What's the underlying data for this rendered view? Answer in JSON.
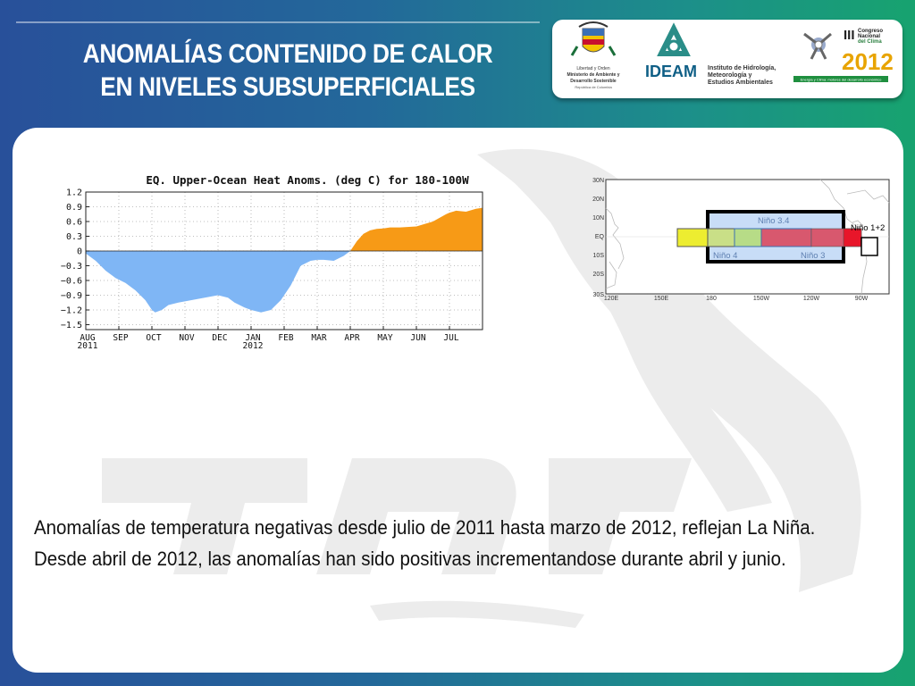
{
  "slide": {
    "title_line1": "ANOMALÍAS CONTENIDO DE CALOR",
    "title_line2": "EN NIVELES SUBSUPERFICIALES",
    "caption": "Anomalías de temperatura negativas desde julio de 2011 hasta marzo de 2012, reflejan La Niña. Desde abril de 2012, las anomalías han sido positivas incrementandose durante abril y junio."
  },
  "logos": {
    "ministry": [
      "Libertad y Orden",
      "Ministerio de Ambiente y",
      "Desarrollo Sostenible",
      "República de Colombia"
    ],
    "ideam_name": "IDEAM",
    "ideam_text": [
      "Instituto de Hidrología,",
      "Meteorología y",
      "Estudios Ambientales"
    ],
    "congreso_roman": "III",
    "congreso_text": [
      "Congreso",
      "Nacional",
      "del Clima"
    ],
    "congreso_year": "2012",
    "congreso_tagline": "Energía y Clima: motores del desarrollo económico"
  },
  "colors": {
    "negative": "#7fb6f5",
    "positive": "#f79a16"
  },
  "chart_data": {
    "type": "area",
    "title": "EQ. Upper-Ocean Heat Anoms. (deg C) for 180-100W",
    "ylim": [
      -1.6,
      1.2
    ],
    "yticks": [
      1.2,
      0.9,
      0.6,
      0.3,
      0,
      -0.3,
      -0.6,
      -0.9,
      -1.2,
      -1.5
    ],
    "ytick_labels": [
      "1.2",
      "0.9",
      "0.6",
      "0.3",
      "0",
      "−0.3",
      "−0.6",
      "−0.9",
      "−1.2",
      "−1.5"
    ],
    "xlim": [
      0,
      12
    ],
    "month_labels": [
      "AUG",
      "SEP",
      "OCT",
      "NOV",
      "DEC",
      "JAN",
      "FEB",
      "MAR",
      "APR",
      "MAY",
      "JUN",
      "JUL"
    ],
    "year_labels": [
      {
        "month": "AUG",
        "year": "2011"
      },
      {
        "month": "JAN",
        "year": "2012"
      }
    ],
    "grid": true,
    "series": {
      "x": [
        0,
        0.3,
        0.6,
        0.9,
        1.2,
        1.5,
        1.8,
        2.0,
        2.1,
        2.3,
        2.5,
        2.8,
        3.2,
        3.6,
        4.0,
        4.3,
        4.5,
        4.8,
        5.0,
        5.3,
        5.6,
        5.9,
        6.2,
        6.5,
        6.8,
        7.0,
        7.2,
        7.5,
        7.8,
        8.0,
        8.2,
        8.4,
        8.6,
        8.8,
        9.0,
        9.2,
        9.5,
        10.0,
        10.5,
        10.9,
        11.0,
        11.2,
        11.5,
        11.8,
        12.0
      ],
      "y": [
        -0.05,
        -0.2,
        -0.4,
        -0.55,
        -0.65,
        -0.8,
        -1.0,
        -1.2,
        -1.25,
        -1.2,
        -1.1,
        -1.05,
        -1.0,
        -0.95,
        -0.9,
        -0.95,
        -1.05,
        -1.15,
        -1.2,
        -1.25,
        -1.2,
        -1.0,
        -0.7,
        -0.3,
        -0.2,
        -0.18,
        -0.18,
        -0.2,
        -0.1,
        0.0,
        0.2,
        0.35,
        0.42,
        0.45,
        0.46,
        0.48,
        0.48,
        0.5,
        0.6,
        0.75,
        0.78,
        0.82,
        0.8,
        0.86,
        0.88
      ]
    }
  },
  "map_data": {
    "lat_labels": [
      "30N",
      "20N",
      "10N",
      "EQ",
      "10S",
      "20S",
      "30S"
    ],
    "lon_labels": [
      "120E",
      "150E",
      "180",
      "150W",
      "120W",
      "90W"
    ],
    "regions": [
      {
        "label": "Niño 3.4"
      },
      {
        "label": "Niño 4"
      },
      {
        "label": "Niño 3"
      },
      {
        "label": "Niño 1+2"
      }
    ]
  }
}
